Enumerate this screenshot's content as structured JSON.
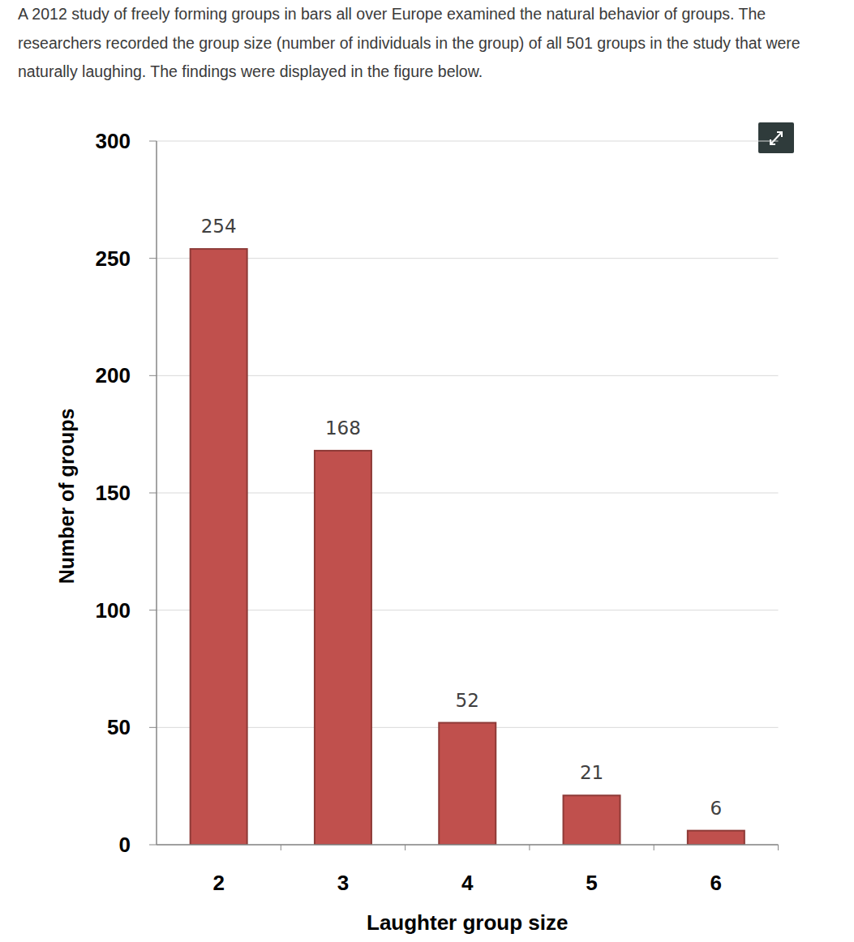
{
  "document": {
    "paragraph": "A 2012 study of freely forming groups in bars all over Europe examined the natural behavior of groups. The researchers recorded the group size (number of individuals in the group) of all 501 groups in the study that were naturally laughing. The findings were displayed in the figure below."
  },
  "chart_data": {
    "type": "bar",
    "categories": [
      "2",
      "3",
      "4",
      "5",
      "6"
    ],
    "values": [
      254,
      168,
      52,
      21,
      6
    ],
    "color": "#c0504d",
    "xlabel": "Laughter group size",
    "ylabel": "Number of groups",
    "ylim": [
      0,
      300
    ],
    "yticks": [
      0,
      50,
      100,
      150,
      200,
      250,
      300
    ],
    "grid": true,
    "data_labels": true
  }
}
